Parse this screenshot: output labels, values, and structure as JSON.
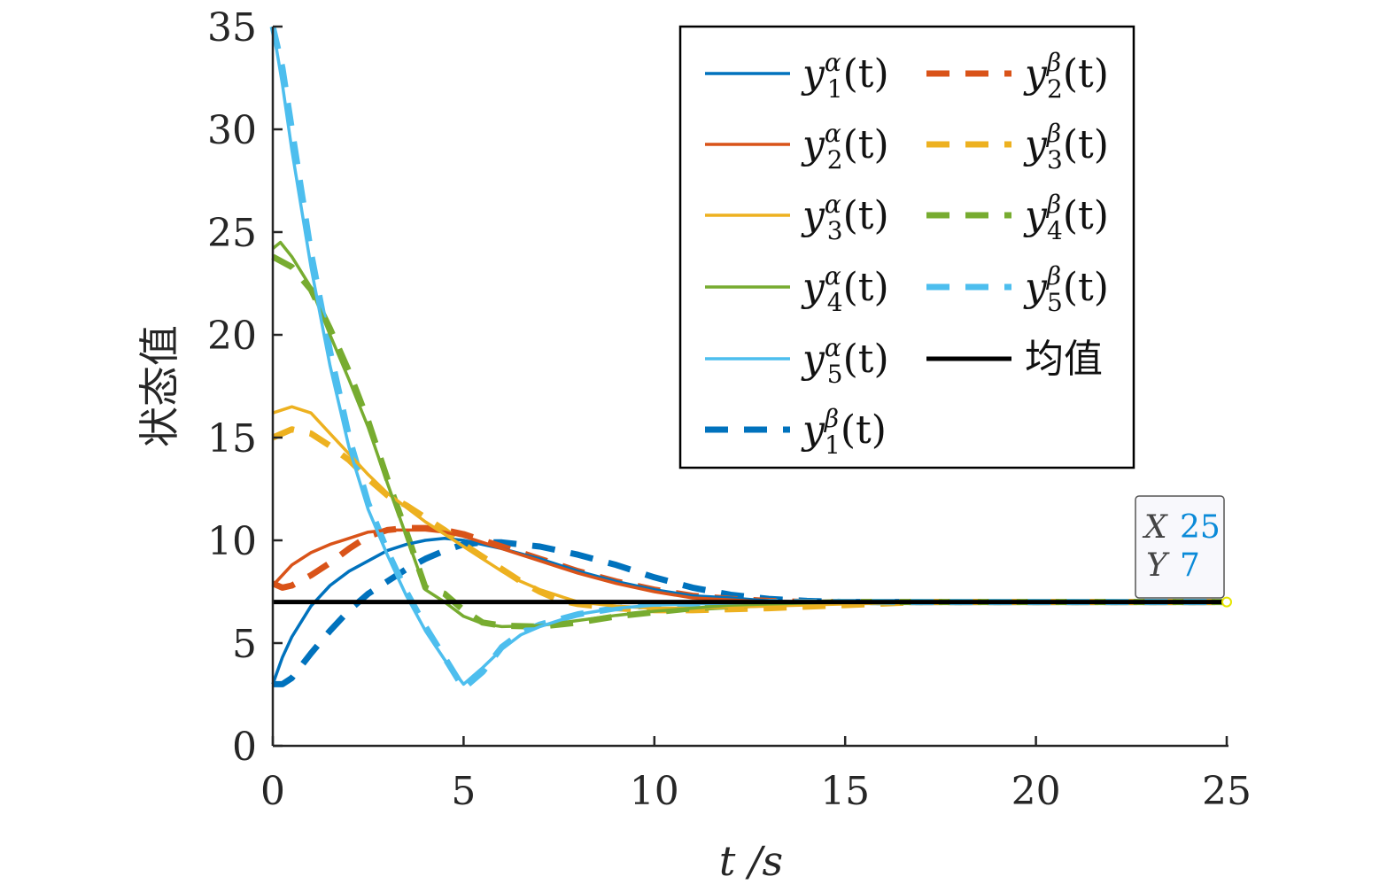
{
  "chart_data": {
    "type": "line",
    "title": "",
    "xlabel": "t /s",
    "ylabel": "状态值",
    "xlim": [
      0,
      25
    ],
    "ylim": [
      0,
      35
    ],
    "xticks": [
      "0",
      "5",
      "10",
      "15",
      "20",
      "25"
    ],
    "yticks": [
      "0",
      "5",
      "10",
      "15",
      "20",
      "25",
      "30",
      "35"
    ],
    "grid": false,
    "legend_position": "top-right",
    "legend_columns": 2,
    "series": [
      {
        "name": "y1α(t)",
        "label_main": "y",
        "label_sup": "α",
        "label_sub": "1",
        "label_tail": "(t)",
        "color": "#0072BD",
        "style": "solid",
        "x": [
          0,
          0.25,
          0.5,
          1,
          1.5,
          2,
          2.5,
          3,
          3.5,
          4,
          4.5,
          5,
          6,
          7,
          8,
          9,
          10,
          11,
          12,
          13,
          14,
          15,
          17,
          20,
          25
        ],
        "y": [
          3,
          4.3,
          5.3,
          6.8,
          7.8,
          8.5,
          9.0,
          9.5,
          9.8,
          10.0,
          10.1,
          10.0,
          9.6,
          9.1,
          8.5,
          8.0,
          7.6,
          7.3,
          7.2,
          7.05,
          7.0,
          7.0,
          7.0,
          7.0,
          7.0
        ]
      },
      {
        "name": "y2α(t)",
        "label_main": "y",
        "label_sup": "α",
        "label_sub": "2",
        "label_tail": "(t)",
        "color": "#D95319",
        "style": "solid",
        "x": [
          0,
          0.5,
          1,
          1.5,
          2,
          2.5,
          3,
          3.5,
          4,
          4.5,
          5,
          6,
          7,
          8,
          9,
          10,
          11,
          12,
          13,
          14,
          15,
          17,
          20,
          25
        ],
        "y": [
          7.8,
          8.8,
          9.4,
          9.8,
          10.1,
          10.4,
          10.5,
          10.5,
          10.5,
          10.4,
          10.2,
          9.6,
          9.0,
          8.4,
          7.9,
          7.5,
          7.2,
          7.1,
          7.0,
          7.0,
          7.0,
          7.0,
          7.0,
          7.0
        ]
      },
      {
        "name": "y3α(t)",
        "label_main": "y",
        "label_sup": "α",
        "label_sub": "3",
        "label_tail": "(t)",
        "color": "#EDB120",
        "style": "solid",
        "x": [
          0,
          0.5,
          1,
          1.5,
          2,
          2.5,
          3,
          3.5,
          4,
          4.5,
          5,
          5.5,
          6,
          6.5,
          7,
          8,
          9,
          10,
          11,
          12,
          13,
          15,
          17,
          20,
          25
        ],
        "y": [
          16.2,
          16.5,
          16.2,
          15.2,
          14.2,
          13.2,
          12.3,
          11.6,
          10.9,
          10.3,
          9.7,
          9.1,
          8.5,
          8.0,
          7.6,
          7.0,
          6.8,
          6.7,
          6.7,
          6.75,
          6.8,
          6.9,
          7.0,
          7.0,
          7.0
        ]
      },
      {
        "name": "y4α(t)",
        "label_main": "y",
        "label_sup": "α",
        "label_sub": "4",
        "label_tail": "(t)",
        "color": "#77AC30",
        "style": "solid",
        "x": [
          0,
          0.2,
          0.5,
          1,
          1.5,
          2,
          2.5,
          3,
          3.5,
          4,
          4.5,
          5,
          5.5,
          6,
          7,
          8,
          9,
          10,
          11,
          12,
          13,
          14,
          15,
          17,
          20,
          25
        ],
        "y": [
          24.2,
          24.5,
          23.8,
          22.3,
          20.0,
          17.8,
          15.5,
          12.8,
          10.2,
          7.6,
          7.0,
          6.3,
          5.95,
          5.8,
          5.85,
          6.1,
          6.35,
          6.55,
          6.7,
          6.85,
          6.9,
          6.95,
          7.0,
          7.0,
          7.0,
          7.0
        ]
      },
      {
        "name": "y5α(t)",
        "label_main": "y",
        "label_sup": "α",
        "label_sub": "5",
        "label_tail": "(t)",
        "color": "#4DBEEE",
        "style": "solid",
        "x": [
          0,
          0.25,
          0.5,
          1,
          1.5,
          2,
          2.5,
          3,
          3.5,
          4,
          4.5,
          5,
          5.5,
          6,
          6.5,
          7,
          8,
          9,
          10,
          11,
          12,
          13,
          15,
          20,
          25
        ],
        "y": [
          35,
          32.2,
          29.0,
          23.3,
          18.5,
          14.5,
          11.5,
          9.3,
          7.3,
          5.6,
          4.2,
          3.0,
          3.8,
          4.7,
          5.4,
          5.8,
          6.4,
          6.7,
          6.85,
          6.9,
          6.95,
          7.0,
          7.0,
          7.0,
          7.0
        ]
      },
      {
        "name": "y1β(t)",
        "label_main": "y",
        "label_sup": "β",
        "label_sub": "1",
        "label_tail": "(t)",
        "color": "#0072BD",
        "style": "dashed",
        "x": [
          0,
          0.25,
          0.5,
          1,
          1.5,
          2,
          2.5,
          3,
          3.5,
          4,
          4.5,
          5,
          5.5,
          6,
          7,
          8,
          9,
          10,
          11,
          12,
          13,
          14,
          15,
          17,
          20,
          25
        ],
        "y": [
          3.0,
          3.0,
          3.3,
          4.5,
          5.6,
          6.6,
          7.4,
          8.0,
          8.6,
          9.1,
          9.5,
          9.8,
          9.9,
          9.9,
          9.7,
          9.3,
          8.8,
          8.2,
          7.7,
          7.35,
          7.15,
          7.05,
          7.0,
          7.0,
          7.0,
          7.0
        ]
      },
      {
        "name": "y2β(t)",
        "label_main": "y",
        "label_sup": "β",
        "label_sub": "2",
        "label_tail": "(t)",
        "color": "#D95319",
        "style": "dashed",
        "x": [
          0,
          0.25,
          0.5,
          1,
          1.5,
          2,
          2.5,
          3,
          3.5,
          4,
          4.5,
          5,
          6,
          7,
          8,
          9,
          10,
          11,
          12,
          13,
          14,
          15,
          17,
          20,
          25
        ],
        "y": [
          7.9,
          7.7,
          7.8,
          8.3,
          8.9,
          9.6,
          10.2,
          10.5,
          10.6,
          10.6,
          10.5,
          10.3,
          9.7,
          9.1,
          8.5,
          8.0,
          7.6,
          7.3,
          7.15,
          7.05,
          7.0,
          7.0,
          7.0,
          7.0,
          7.0
        ]
      },
      {
        "name": "y3β(t)",
        "label_main": "y",
        "label_sup": "β",
        "label_sub": "3",
        "label_tail": "(t)",
        "color": "#EDB120",
        "style": "dashed",
        "x": [
          0,
          0.5,
          1,
          1.5,
          2,
          2.5,
          3,
          3.5,
          4,
          4.5,
          5,
          5.5,
          6,
          6.5,
          7,
          7.5,
          8,
          9,
          10,
          11,
          12,
          13,
          15,
          17,
          20,
          25
        ],
        "y": [
          15.0,
          15.4,
          15.2,
          14.6,
          13.9,
          13.0,
          12.2,
          11.7,
          11.1,
          10.5,
          9.8,
          9.2,
          8.6,
          8.0,
          7.5,
          7.1,
          6.9,
          6.7,
          6.6,
          6.6,
          6.65,
          6.7,
          6.85,
          7.0,
          7.0,
          7.0
        ]
      },
      {
        "name": "y4β(t)",
        "label_main": "y",
        "label_sup": "β",
        "label_sub": "4",
        "label_tail": "(t)",
        "color": "#77AC30",
        "style": "dashed",
        "x": [
          0,
          0.5,
          1,
          1.5,
          2,
          2.5,
          3,
          3.5,
          4,
          4.5,
          5,
          5.5,
          6,
          7,
          8,
          9,
          10,
          11,
          12,
          13,
          14,
          15,
          17,
          20,
          25
        ],
        "y": [
          23.8,
          23.3,
          22.2,
          20.3,
          18.2,
          15.8,
          13.0,
          10.4,
          7.7,
          7.4,
          6.6,
          6.0,
          5.85,
          5.8,
          6.0,
          6.3,
          6.5,
          6.7,
          6.8,
          6.9,
          6.95,
          7.0,
          7.0,
          7.0,
          7.0
        ]
      },
      {
        "name": "y5β(t)",
        "label_main": "y",
        "label_sup": "β",
        "label_sub": "5",
        "label_tail": "(t)",
        "color": "#4DBEEE",
        "style": "dashed",
        "x": [
          0,
          0.25,
          0.5,
          1,
          1.5,
          2,
          2.5,
          3,
          3.5,
          4,
          4.5,
          5,
          5.5,
          6,
          6.5,
          7,
          8,
          9,
          10,
          11,
          12,
          13,
          15,
          20,
          25
        ],
        "y": [
          35,
          33.0,
          30.0,
          24.0,
          19.2,
          15.0,
          11.8,
          9.5,
          7.5,
          5.8,
          4.3,
          2.8,
          3.6,
          4.8,
          5.5,
          5.9,
          6.4,
          6.7,
          6.85,
          6.9,
          6.95,
          7.0,
          7.0,
          7.0,
          7.0
        ]
      },
      {
        "name": "均值",
        "label_main": "均值",
        "label_sup": "",
        "label_sub": "",
        "label_tail": "",
        "color": "#000000",
        "style": "solid-thick",
        "x": [
          0,
          25
        ],
        "y": [
          7,
          7
        ]
      }
    ],
    "datatip": {
      "x_label": "X",
      "x_value": "25",
      "y_label": "Y",
      "y_value": "7",
      "point_x": 25,
      "point_y": 7,
      "value_color": "#0a8ad8"
    }
  }
}
